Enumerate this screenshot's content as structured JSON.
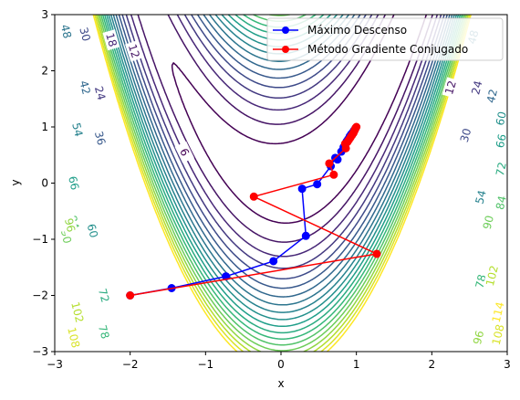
{
  "chart_data": {
    "type": "line",
    "title": "",
    "xlabel": "x",
    "ylabel": "y",
    "xlim": [
      -3,
      3
    ],
    "ylim": [
      -3,
      3
    ],
    "xticks": [
      -3,
      -2,
      -1,
      0,
      1,
      2,
      3
    ],
    "yticks": [
      -3,
      -2,
      -1,
      0,
      1,
      2,
      3
    ],
    "grid": false,
    "legend_position": "top-right",
    "contour": {
      "function": "Rosenbrock (1 - x)^2 + 10 (y - x^2)^2",
      "levels": [
        6,
        12,
        18,
        24,
        30,
        36,
        42,
        48,
        54,
        60,
        66,
        72,
        78,
        84,
        90,
        96,
        102,
        108,
        114
      ],
      "colormap": "viridis",
      "labels": [
        {
          "text": "6",
          "x": -1.28,
          "y": 0.55
        },
        {
          "text": "12",
          "x": -1.95,
          "y": 2.35
        },
        {
          "text": "18",
          "x": -2.25,
          "y": 2.55
        },
        {
          "text": "24",
          "x": -2.4,
          "y": 1.6
        },
        {
          "text": "30",
          "x": -2.6,
          "y": 2.65
        },
        {
          "text": "36",
          "x": -2.4,
          "y": 0.8
        },
        {
          "text": "42",
          "x": -2.6,
          "y": 1.7
        },
        {
          "text": "48",
          "x": -2.85,
          "y": 2.7
        },
        {
          "text": "54",
          "x": -2.7,
          "y": 0.95
        },
        {
          "text": "60",
          "x": -2.5,
          "y": -0.85
        },
        {
          "text": "66",
          "x": -2.75,
          "y": 0.0
        },
        {
          "text": "72",
          "x": -2.35,
          "y": -2.0
        },
        {
          "text": "78",
          "x": -2.35,
          "y": -2.65
        },
        {
          "text": "84",
          "x": -2.75,
          "y": -0.7
        },
        {
          "text": "90",
          "x": -2.85,
          "y": -0.95
        },
        {
          "text": "96",
          "x": -2.8,
          "y": -0.75
        },
        {
          "text": "102",
          "x": -2.7,
          "y": -2.3
        },
        {
          "text": "108",
          "x": -2.75,
          "y": -2.75
        },
        {
          "text": "12",
          "x": 2.25,
          "y": 1.7
        },
        {
          "text": "24",
          "x": 2.6,
          "y": 1.7
        },
        {
          "text": "30",
          "x": 2.45,
          "y": 0.85
        },
        {
          "text": "42",
          "x": 2.8,
          "y": 1.55
        },
        {
          "text": "48",
          "x": 2.55,
          "y": 2.6
        },
        {
          "text": "54",
          "x": 2.65,
          "y": -0.25
        },
        {
          "text": "60",
          "x": 2.92,
          "y": 1.15
        },
        {
          "text": "66",
          "x": 2.92,
          "y": 0.75
        },
        {
          "text": "72",
          "x": 2.92,
          "y": 0.25
        },
        {
          "text": "78",
          "x": 2.65,
          "y": -1.75
        },
        {
          "text": "84",
          "x": 2.92,
          "y": -0.35
        },
        {
          "text": "90",
          "x": 2.75,
          "y": -0.7
        },
        {
          "text": "96",
          "x": 2.62,
          "y": -2.75
        },
        {
          "text": "102",
          "x": 2.8,
          "y": -1.65
        },
        {
          "text": "108",
          "x": 2.88,
          "y": -2.7
        },
        {
          "text": "114",
          "x": 2.88,
          "y": -2.3
        }
      ]
    },
    "series": [
      {
        "name": "Máximo Descenso",
        "color": "#0000ff",
        "marker": "circle",
        "x": [
          -2,
          -1.45,
          -0.73,
          -0.1,
          0.33,
          0.28,
          0.48,
          0.66,
          0.72,
          0.75,
          0.8,
          0.83,
          0.85,
          0.87,
          0.89,
          0.91,
          0.93,
          0.95,
          0.97,
          0.99
        ],
        "y": [
          -2,
          -1.87,
          -1.66,
          -1.39,
          -0.94,
          -0.1,
          -0.02,
          0.3,
          0.45,
          0.42,
          0.56,
          0.64,
          0.68,
          0.74,
          0.78,
          0.83,
          0.87,
          0.9,
          0.94,
          0.98
        ]
      },
      {
        "name": "Método Gradiente Conjugado",
        "color": "#ff0000",
        "marker": "circle",
        "x": [
          -2,
          1.27,
          -0.36,
          0.7,
          0.64,
          0.86,
          0.85,
          0.88,
          0.9,
          0.92,
          0.94,
          0.96,
          0.97,
          0.98,
          0.99,
          1.0
        ],
        "y": [
          -2,
          -1.26,
          -0.24,
          0.15,
          0.35,
          0.62,
          0.7,
          0.73,
          0.77,
          0.81,
          0.85,
          0.89,
          0.92,
          0.95,
          0.98,
          1.0
        ]
      }
    ]
  }
}
